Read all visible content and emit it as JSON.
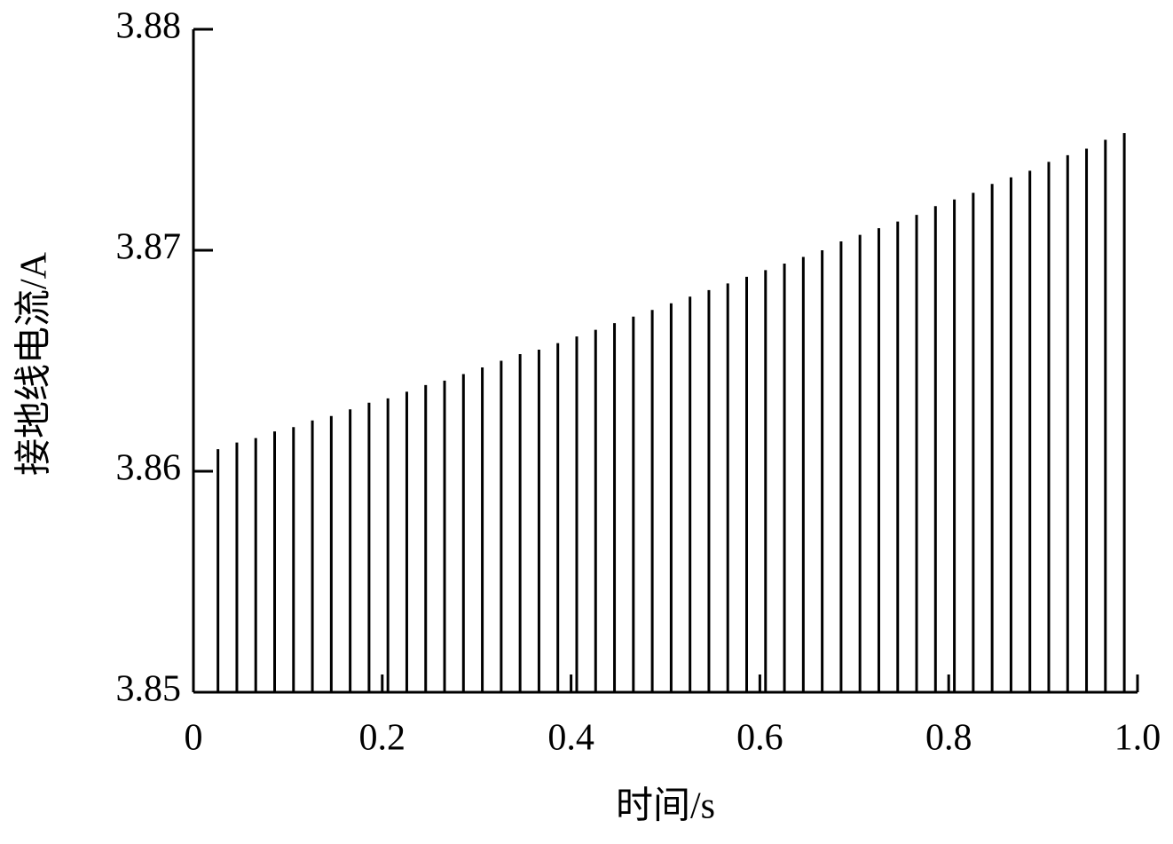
{
  "chart_data": {
    "type": "stem",
    "x_label": "时间/s",
    "y_label": "接地线电流/A",
    "xlim": [
      0,
      1
    ],
    "ylim": [
      3.85,
      3.88
    ],
    "xticks": [
      0,
      0.2,
      0.4,
      0.6,
      0.8,
      {
        "value": 1,
        "label": "1.0"
      }
    ],
    "yticks": [
      3.85,
      3.86,
      3.87,
      3.88
    ],
    "color": "#000000",
    "x": [
      0.026,
      0.046,
      0.066,
      0.086,
      0.106,
      0.126,
      0.146,
      0.166,
      0.186,
      0.206,
      0.226,
      0.246,
      0.266,
      0.286,
      0.306,
      0.326,
      0.346,
      0.366,
      0.386,
      0.406,
      0.426,
      0.446,
      0.466,
      0.486,
      0.506,
      0.526,
      0.546,
      0.566,
      0.586,
      0.606,
      0.626,
      0.646,
      0.666,
      0.686,
      0.706,
      0.726,
      0.746,
      0.766,
      0.786,
      0.806,
      0.826,
      0.846,
      0.866,
      0.886,
      0.906,
      0.926,
      0.946,
      0.966,
      0.986
    ],
    "values": [
      3.861,
      3.8613,
      3.8615,
      3.8618,
      3.862,
      3.8623,
      3.8625,
      3.8628,
      3.8631,
      3.8633,
      3.8636,
      3.8639,
      3.8641,
      3.8644,
      3.8647,
      3.865,
      3.8653,
      3.8655,
      3.8658,
      3.8661,
      3.8664,
      3.8667,
      3.867,
      3.8673,
      3.8676,
      3.8679,
      3.8682,
      3.8685,
      3.8688,
      3.8691,
      3.8694,
      3.8697,
      3.87,
      3.8704,
      3.8707,
      3.871,
      3.8713,
      3.8716,
      3.872,
      3.8723,
      3.8726,
      3.873,
      3.8733,
      3.8736,
      3.874,
      3.8743,
      3.8746,
      3.875,
      3.8753
    ]
  }
}
